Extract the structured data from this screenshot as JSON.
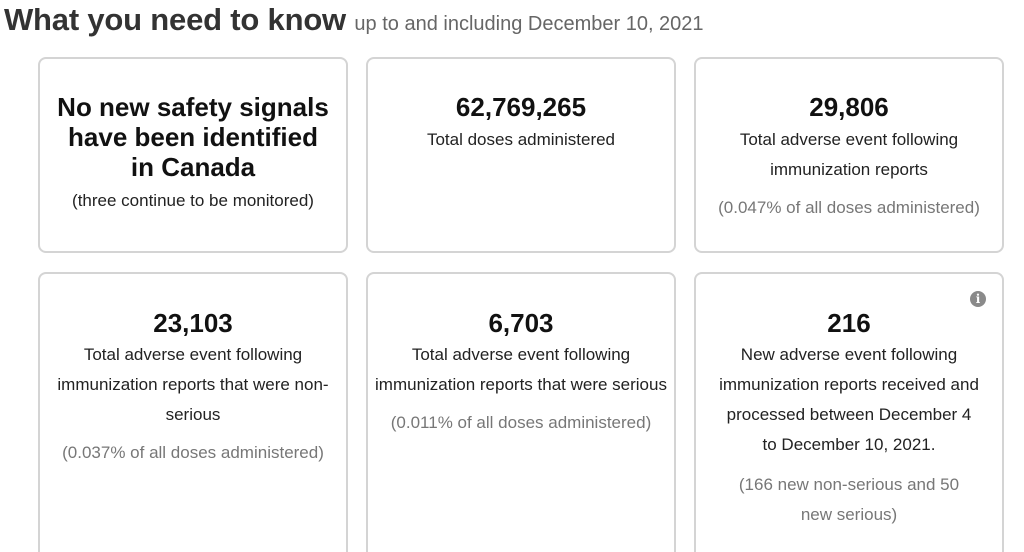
{
  "header": {
    "title": "What you need to know",
    "subtitle": "up to and including December 10, 2021"
  },
  "cards": [
    {
      "heading": "No new safety signals have been identified in Canada",
      "note": "(three continue to be monitored)"
    },
    {
      "value": "62,769,265",
      "label": "Total doses administered"
    },
    {
      "value": "29,806",
      "label": "Total adverse event following immunization reports",
      "percent": "(0.047% of all doses administered)"
    },
    {
      "value": "23,103",
      "label": "Total adverse event following immunization reports that were non-serious",
      "percent": "(0.037% of all doses administered)"
    },
    {
      "value": "6,703",
      "label": "Total adverse event following immunization reports that were serious",
      "percent": "(0.011% of all doses administered)"
    },
    {
      "value": "216",
      "label": "New adverse event following immunization reports received and processed between December 4 to December 10, 2021.",
      "percent": "(166 new non-serious and 50 new serious)",
      "info_icon": "info-icon"
    }
  ]
}
